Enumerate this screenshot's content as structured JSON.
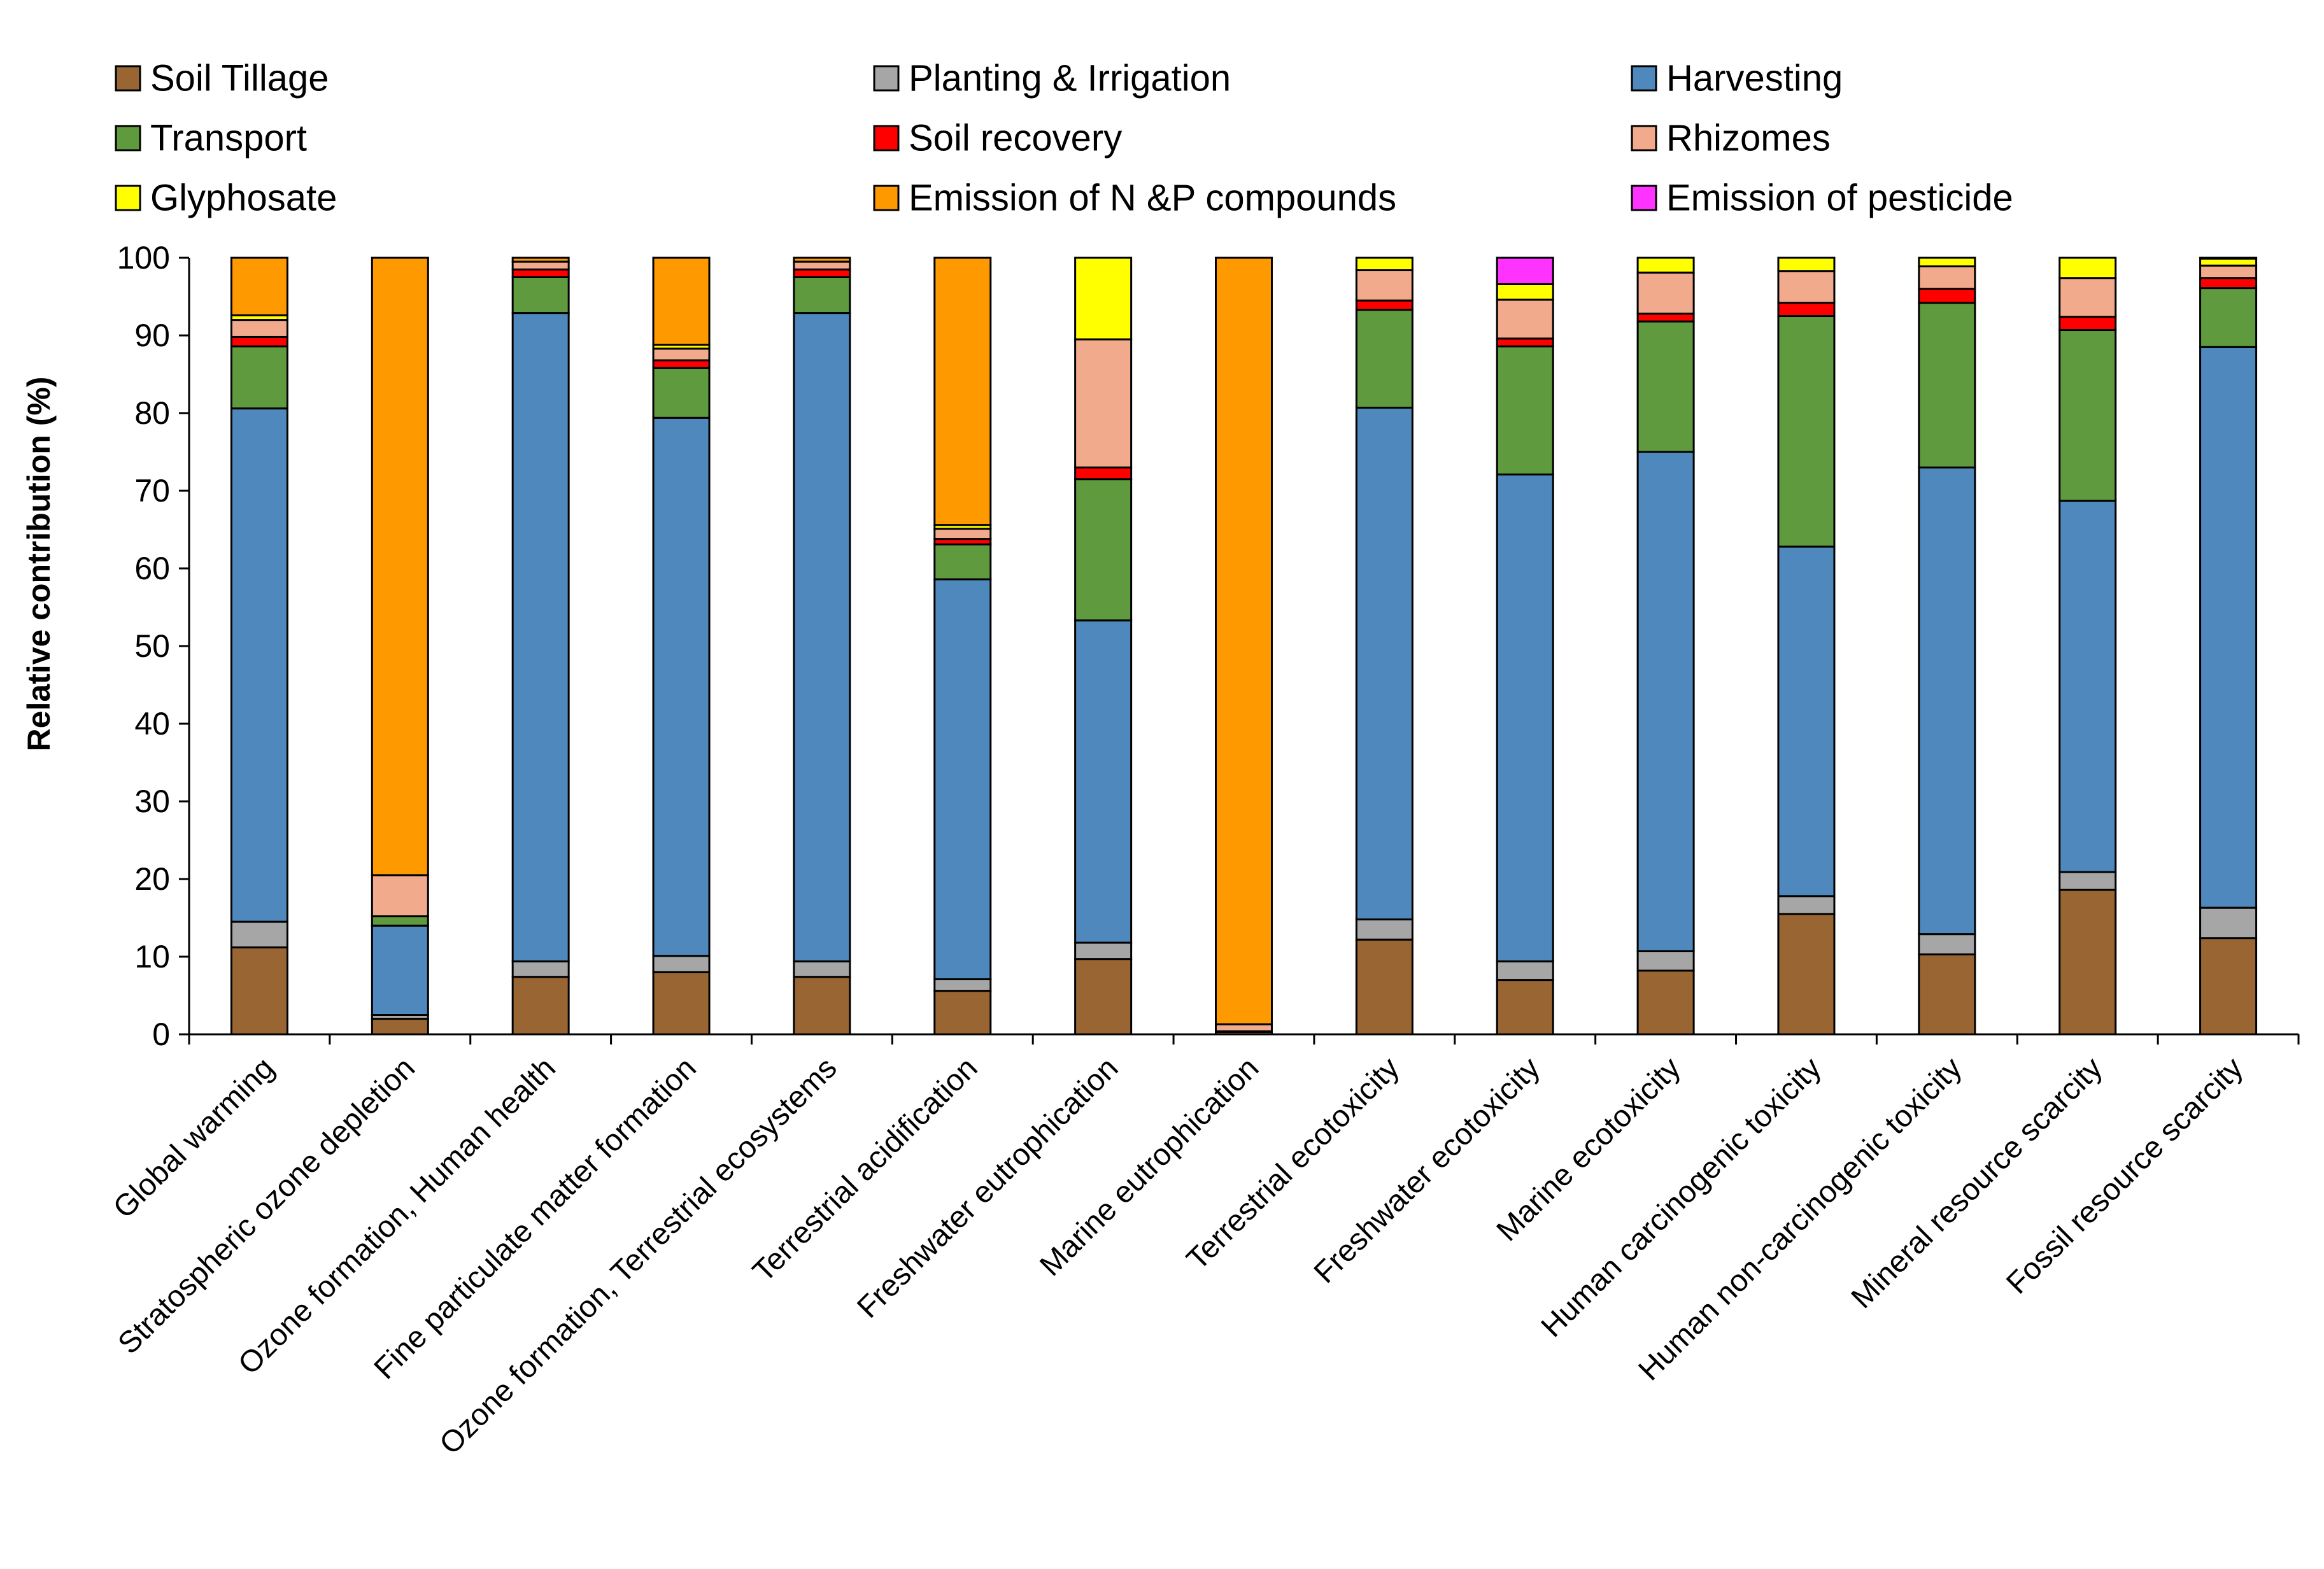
{
  "chart_data": {
    "type": "bar",
    "stacked": true,
    "title": "",
    "xlabel": "",
    "ylabel": "Relative contribution (%)",
    "ylim": [
      0,
      100
    ],
    "yticks": [
      0,
      10,
      20,
      30,
      40,
      50,
      60,
      70,
      80,
      90,
      100
    ],
    "grid": false,
    "legend_position": "top",
    "categories": [
      "Global warming",
      "Stratospheric ozone depletion",
      "Ozone formation, Human health",
      "Fine particulate matter formation",
      "Ozone formation, Terrestrial ecosystems",
      "Terrestrial acidification",
      "Freshwater eutrophication",
      "Marine eutrophication",
      "Terrestrial ecotoxicity",
      "Freshwater ecotoxicity",
      "Marine ecotoxicity",
      "Human carcinogenic toxicity",
      "Human non-carcinogenic toxicity",
      "Mineral resource scarcity",
      "Fossil resource scarcity"
    ],
    "series": [
      {
        "name": "Soil Tillage",
        "color": "#996633",
        "values": [
          11.2,
          2.0,
          7.4,
          8.0,
          7.4,
          5.6,
          9.7,
          0.3,
          12.2,
          7.0,
          8.2,
          15.5,
          10.3,
          18.6,
          12.4
        ]
      },
      {
        "name": "Planting & Irrigation",
        "color": "#a6a6a6",
        "values": [
          3.3,
          0.5,
          2.0,
          2.1,
          2.0,
          1.5,
          2.1,
          0.1,
          2.6,
          2.4,
          2.5,
          2.3,
          2.6,
          2.3,
          3.9
        ]
      },
      {
        "name": "Harvesting",
        "color": "#4f88bd",
        "values": [
          66.1,
          11.5,
          83.5,
          69.3,
          83.5,
          51.5,
          41.5,
          0,
          65.9,
          62.7,
          64.3,
          45.0,
          60.1,
          47.8,
          72.2
        ]
      },
      {
        "name": "Transport",
        "color": "#5f9a3e",
        "values": [
          8.0,
          1.2,
          4.6,
          6.4,
          4.6,
          4.5,
          18.2,
          0,
          12.6,
          16.5,
          16.8,
          29.7,
          21.2,
          22.0,
          7.6
        ]
      },
      {
        "name": "Soil recovery",
        "color": "#ff0000",
        "values": [
          1.2,
          0,
          1.0,
          1.0,
          1.0,
          0.7,
          1.5,
          0,
          1.2,
          1.0,
          1.0,
          1.7,
          1.8,
          1.7,
          1.3
        ]
      },
      {
        "name": "Rhizomes",
        "color": "#f2aa8c",
        "values": [
          2.2,
          5.3,
          1.0,
          1.5,
          1.0,
          1.3,
          16.5,
          0.9,
          3.9,
          5.0,
          5.3,
          4.1,
          2.9,
          5.0,
          1.6
        ]
      },
      {
        "name": "Glyphosate",
        "color": "#ffff00",
        "values": [
          0.6,
          0,
          0,
          0.5,
          0,
          0.5,
          10.5,
          0,
          1.6,
          2.0,
          1.9,
          1.7,
          1.1,
          2.6,
          0.9
        ]
      },
      {
        "name": "Emission of N &P compounds",
        "color": "#ff9900",
        "values": [
          7.4,
          79.5,
          0.5,
          11.2,
          0.5,
          34.4,
          0,
          98.7,
          0,
          0,
          0,
          0,
          0,
          0,
          0.1
        ]
      },
      {
        "name": "Emission of pesticide",
        "color": "#ff33ff",
        "values": [
          0,
          0,
          0,
          0,
          0,
          0,
          0,
          0,
          0,
          3.4,
          0,
          0,
          0,
          0,
          0
        ]
      }
    ]
  }
}
